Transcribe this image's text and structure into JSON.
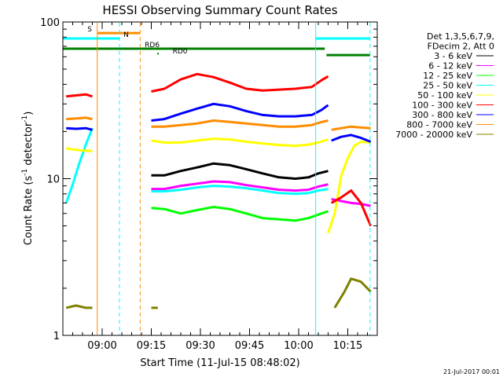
{
  "chart_data": {
    "type": "line",
    "title": "HESSI Observing Summary Count Rates",
    "xlabel": "Start Time (11-Jul-15 08:48:02)",
    "ylabel": "Count Rate (s⁻¹ detector⁻¹)",
    "ylabel_parts": [
      "Count Rate (s",
      "-1",
      " detector",
      "-1",
      ")"
    ],
    "x_unit": "minutes since 08:48:02",
    "xlim": [
      0,
      96
    ],
    "ylim": [
      1,
      100
    ],
    "y_scale": "log",
    "x_ticks": [
      {
        "value": 12,
        "label": "09:00"
      },
      {
        "value": 27,
        "label": "09:15"
      },
      {
        "value": 42,
        "label": "09:30"
      },
      {
        "value": 57,
        "label": "09:45"
      },
      {
        "value": 72,
        "label": "10:00"
      },
      {
        "value": 87,
        "label": "10:15"
      }
    ],
    "y_ticks": [
      {
        "value": 1,
        "label": "1"
      },
      {
        "value": 10,
        "label": "10"
      },
      {
        "value": 100,
        "label": "100"
      }
    ],
    "legend_header": [
      "Det 1,3,5,6,7,9,",
      "FDecim 2, Att 0"
    ],
    "legend_position": "right",
    "footer": "21-Jul-2017 00:01",
    "series": [
      {
        "name": "3 - 6 keV",
        "color": "#000000",
        "segments": [
          {
            "x": [
              27,
              31,
              36,
              41,
              46,
              51,
              56,
              61,
              66,
              71,
              75,
              78,
              81
            ],
            "y": [
              10.5,
              10.5,
              11.2,
              11.8,
              12.5,
              12.2,
              11.5,
              10.8,
              10.2,
              10.0,
              10.2,
              10.8,
              11.2
            ]
          }
        ]
      },
      {
        "name": "6 - 12 keV",
        "color": "#ff00ff",
        "segments": [
          {
            "x": [
              27,
              31,
              36,
              41,
              46,
              51,
              56,
              61,
              66,
              71,
              75,
              78,
              81
            ],
            "y": [
              8.6,
              8.6,
              9.0,
              9.3,
              9.6,
              9.5,
              9.1,
              8.8,
              8.5,
              8.4,
              8.5,
              8.9,
              9.2
            ]
          },
          {
            "x": [
              82,
              85,
              88,
              91,
              94
            ],
            "y": [
              7.4,
              7.2,
              7.0,
              6.9,
              6.7
            ]
          }
        ]
      },
      {
        "name": "12 - 25 keV",
        "color": "#00ff00",
        "segments": [
          {
            "x": [
              27,
              31,
              36,
              41,
              46,
              51,
              56,
              61,
              66,
              71,
              75,
              78,
              81
            ],
            "y": [
              6.5,
              6.4,
              6.0,
              6.3,
              6.6,
              6.4,
              6.0,
              5.6,
              5.5,
              5.4,
              5.6,
              5.9,
              6.2
            ]
          }
        ]
      },
      {
        "name": "25 - 50 keV",
        "color": "#00ffff",
        "segments": [
          {
            "x": [
              1,
              3,
              5,
              7,
              9
            ],
            "y": [
              7.0,
              9.2,
              12.5,
              16.5,
              21.0
            ]
          },
          {
            "x": [
              27,
              31,
              36,
              41,
              46,
              51,
              56,
              61,
              66,
              71,
              75,
              78,
              81
            ],
            "y": [
              8.3,
              8.3,
              8.5,
              8.8,
              9.0,
              8.9,
              8.7,
              8.4,
              8.1,
              8.0,
              8.1,
              8.4,
              8.6
            ]
          }
        ]
      },
      {
        "name": "50 - 100 keV",
        "color": "#ffff00",
        "segments": [
          {
            "x": [
              1,
              5,
              9
            ],
            "y": [
              15.6,
              15.2,
              15.0
            ]
          },
          {
            "x": [
              27,
              31,
              36,
              41,
              46,
              51,
              56,
              61,
              66,
              71,
              75,
              78,
              81
            ],
            "y": [
              17.5,
              17.0,
              17.0,
              17.5,
              18.0,
              17.8,
              17.2,
              16.8,
              16.4,
              16.2,
              16.5,
              17.0,
              17.8
            ]
          },
          {
            "x": [
              81,
              83,
              85,
              87,
              89,
              91,
              94
            ],
            "y": [
              4.5,
              6.0,
              10.5,
              13.5,
              16.2,
              17.2,
              17.0
            ]
          }
        ]
      },
      {
        "name": "100 - 300 keV",
        "color": "#ff0000",
        "segments": [
          {
            "x": [
              1,
              4,
              7,
              9
            ],
            "y": [
              33.5,
              34.0,
              34.5,
              33.5
            ]
          },
          {
            "x": [
              27,
              31,
              36,
              41,
              46,
              51,
              56,
              61,
              66,
              71,
              76,
              79,
              81
            ],
            "y": [
              36.0,
              37.5,
              43.0,
              46.5,
              44.5,
              41.0,
              37.5,
              36.5,
              37.0,
              37.5,
              38.5,
              42.5,
              45.0
            ]
          },
          {
            "x": [
              82,
              85,
              88,
              91,
              94
            ],
            "y": [
              7.0,
              7.6,
              8.4,
              7.0,
              5.0
            ]
          }
        ]
      },
      {
        "name": "300 - 800 keV",
        "color": "#0000ff",
        "segments": [
          {
            "x": [
              1,
              4,
              7,
              9
            ],
            "y": [
              21.0,
              20.8,
              21.0,
              20.5
            ]
          },
          {
            "x": [
              27,
              31,
              36,
              41,
              46,
              51,
              56,
              61,
              66,
              71,
              76,
              79,
              81
            ],
            "y": [
              23.5,
              24.0,
              26.0,
              28.0,
              30.0,
              29.0,
              27.0,
              25.5,
              25.0,
              25.0,
              25.5,
              27.5,
              29.5
            ]
          },
          {
            "x": [
              82,
              85,
              88,
              91,
              94
            ],
            "y": [
              17.5,
              18.5,
              19.0,
              18.2,
              17.2
            ]
          }
        ]
      },
      {
        "name": "800 - 7000 keV",
        "color": "#ff8c00",
        "segments": [
          {
            "x": [
              1,
              4,
              7,
              9
            ],
            "y": [
              24.0,
              24.2,
              24.5,
              24.0
            ]
          },
          {
            "x": [
              27,
              31,
              36,
              41,
              46,
              51,
              56,
              61,
              66,
              71,
              76,
              79,
              81
            ],
            "y": [
              21.5,
              21.5,
              22.0,
              22.5,
              23.5,
              23.0,
              22.5,
              22.0,
              21.5,
              21.5,
              22.0,
              23.0,
              23.5
            ]
          },
          {
            "x": [
              82,
              85,
              88,
              91,
              94
            ],
            "y": [
              20.5,
              21.0,
              21.5,
              21.2,
              21.0
            ]
          }
        ]
      },
      {
        "name": "7000 - 20000 keV",
        "color": "#808000",
        "segments": [
          {
            "x": [
              1,
              4,
              7,
              9
            ],
            "y": [
              1.5,
              1.55,
              1.5,
              1.5
            ]
          },
          {
            "x": [
              27,
              29
            ],
            "y": [
              1.5,
              1.5
            ]
          },
          {
            "x": [
              83,
              86,
              88,
              91,
              94
            ],
            "y": [
              1.5,
              1.9,
              2.3,
              2.2,
              1.9
            ]
          }
        ]
      }
    ],
    "markers": [
      {
        "type": "vline",
        "x": 10.5,
        "color": "#ff8c00",
        "dash": false
      },
      {
        "type": "vline",
        "x": 17.3,
        "color": "#00ffff",
        "dash": true
      },
      {
        "type": "vline",
        "x": 23.6,
        "color": "#ff8c00",
        "dash": true
      },
      {
        "type": "vline",
        "x": 77.2,
        "color": "#00ffff",
        "dash": false
      },
      {
        "type": "vline",
        "x": 93.8,
        "color": "#00ffff",
        "dash": true
      }
    ],
    "flags": [
      {
        "label": "S",
        "color": "#ff8c00",
        "x1": 10.5,
        "x2": 23.6,
        "y": 85,
        "label_x": 7.5
      },
      {
        "label": "N",
        "color": "#00ffff",
        "x1": 0,
        "x2": 17.3,
        "y": 78.5,
        "label_x": 18.5
      },
      {
        "label": "N",
        "color": "#00ffff",
        "x1": 77.2,
        "x2": 93.8,
        "y": 78.5,
        "label_x": null
      },
      {
        "label": "RD6",
        "color": "#008000",
        "x1": 0,
        "x2": 80.0,
        "y": 67.5,
        "label_x": 25.0
      },
      {
        "label": "RD0",
        "color": "#008000",
        "x1": 80.5,
        "x2": 93.8,
        "y": 61.5,
        "label_x": 33.5
      }
    ]
  }
}
